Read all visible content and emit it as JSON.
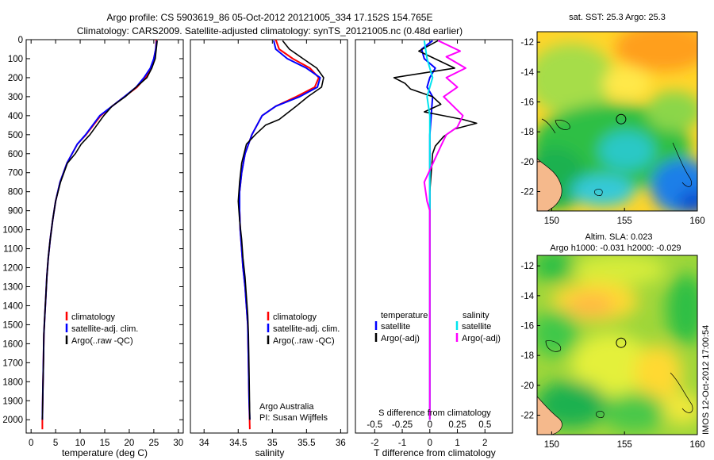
{
  "header": {
    "line1": "Argo profile: CS 5903619_86 05-Oct-2012 20121005_334 17.152S 154.765E",
    "line2": "Climatology: CARS2009. Satellite-adjusted climatology: synTS_20121005.nc (0.48d earlier)"
  },
  "colors": {
    "climatology": "#ff0000",
    "satellite": "#0000ff",
    "argo": "#000000",
    "salinity_sat": "#00e5ee",
    "salinity_argo": "#ff00ff",
    "land": "#f5b98c"
  },
  "chart_data": [
    {
      "type": "line",
      "id": "temperature",
      "xlabel": "temperature (deg C)",
      "ylabel": "",
      "xlim": [
        -1,
        31
      ],
      "ylim": [
        2070,
        0
      ],
      "xticks": [
        "0",
        "5",
        "10",
        "15",
        "20",
        "25",
        "30"
      ],
      "xtick_values": [
        0,
        5,
        10,
        15,
        20,
        25,
        30
      ],
      "yticks": [
        "0",
        "100",
        "200",
        "300",
        "400",
        "500",
        "600",
        "700",
        "800",
        "900",
        "1000",
        "1100",
        "1200",
        "1300",
        "1400",
        "1500",
        "1600",
        "1700",
        "1800",
        "1900",
        "2000"
      ],
      "ytick_values": [
        0,
        100,
        200,
        300,
        400,
        500,
        600,
        700,
        800,
        900,
        1000,
        1100,
        1200,
        1300,
        1400,
        1500,
        1600,
        1700,
        1800,
        1900,
        2000
      ],
      "legend": [
        "climatology",
        "satellite-adj. clim.",
        "Argo(..raw -QC)"
      ],
      "series": [
        {
          "name": "climatology",
          "color": "#ff0000",
          "x": [
            25.5,
            25.4,
            25.0,
            24.5,
            23.3,
            21.6,
            19.0,
            16.5,
            14.2,
            11.2,
            9.4,
            7.3,
            5.9,
            5.0,
            4.4,
            3.9,
            3.5,
            3.2,
            3.0,
            2.8,
            2.6,
            2.5,
            2.4,
            2.3,
            2.3
          ],
          "y": [
            0,
            50,
            100,
            150,
            200,
            250,
            300,
            350,
            400,
            500,
            550,
            650,
            750,
            850,
            950,
            1050,
            1150,
            1250,
            1350,
            1450,
            1550,
            1700,
            1850,
            2000,
            2050
          ]
        },
        {
          "name": "satellite-adj. clim.",
          "color": "#0000ff",
          "x": [
            25.6,
            25.4,
            25.0,
            24.3,
            23.0,
            21.4,
            19.0,
            16.5,
            14.0,
            11.1,
            9.4,
            7.3,
            5.9,
            5.0,
            4.4,
            3.9,
            3.5,
            3.2,
            3.0,
            2.8,
            2.6,
            2.5,
            2.4,
            2.3
          ],
          "y": [
            5,
            50,
            100,
            150,
            200,
            250,
            300,
            350,
            400,
            500,
            550,
            650,
            750,
            850,
            950,
            1050,
            1150,
            1250,
            1350,
            1450,
            1550,
            1700,
            1850,
            2000
          ]
        },
        {
          "name": "Argo(..raw -QC)",
          "color": "#000000",
          "x": [
            25.7,
            25.5,
            25.3,
            24.6,
            23.6,
            21.4,
            19.2,
            16.5,
            14.8,
            13.4,
            12.0,
            10.2,
            9.0,
            7.4,
            6.0,
            5.0,
            4.4,
            3.9,
            3.5,
            3.2,
            3.0,
            2.8,
            2.6,
            2.5,
            2.4,
            2.3
          ],
          "y": [
            5,
            50,
            100,
            150,
            200,
            250,
            300,
            350,
            400,
            450,
            500,
            550,
            600,
            650,
            750,
            850,
            950,
            1050,
            1150,
            1250,
            1350,
            1450,
            1550,
            1700,
            1850,
            2000
          ]
        }
      ]
    },
    {
      "type": "line",
      "id": "salinity",
      "xlabel": "salinity",
      "xlim": [
        33.8,
        36.1
      ],
      "ylim": [
        2070,
        0
      ],
      "xticks": [
        "34",
        "34.5",
        "35",
        "35.5",
        "36"
      ],
      "xtick_values": [
        34,
        34.5,
        35,
        35.5,
        36
      ],
      "legend": [
        "climatology",
        "satellite-adj. clim.",
        "Argo(..raw -QC)"
      ],
      "annotation": [
        "Argo Australia",
        "PI: Susan Wijffels"
      ],
      "series": [
        {
          "name": "climatology",
          "color": "#ff0000",
          "x": [
            35.05,
            35.1,
            35.3,
            35.55,
            35.68,
            35.62,
            35.35,
            35.05,
            34.85,
            34.7,
            34.6,
            34.55,
            34.52,
            34.52,
            34.53,
            34.55,
            34.57,
            34.6,
            34.62,
            34.64,
            34.65,
            34.66,
            34.67
          ],
          "y": [
            0,
            50,
            100,
            150,
            200,
            250,
            300,
            350,
            400,
            500,
            600,
            700,
            800,
            900,
            1000,
            1100,
            1200,
            1300,
            1400,
            1500,
            1700,
            1900,
            2050
          ]
        },
        {
          "name": "satellite-adj. clim.",
          "color": "#0000ff",
          "x": [
            35.02,
            35.05,
            35.22,
            35.5,
            35.7,
            35.66,
            35.4,
            35.05,
            34.85,
            34.7,
            34.6,
            34.55,
            34.52,
            34.52,
            34.53,
            34.55,
            34.57,
            34.6,
            34.62,
            34.64,
            34.65,
            34.66,
            34.67
          ],
          "y": [
            5,
            50,
            100,
            150,
            200,
            250,
            300,
            350,
            400,
            500,
            600,
            700,
            800,
            900,
            1000,
            1100,
            1200,
            1300,
            1400,
            1500,
            1700,
            1900,
            2000
          ]
        },
        {
          "name": "Argo(..raw -QC)",
          "color": "#000000",
          "x": [
            35.15,
            35.25,
            35.45,
            35.65,
            35.75,
            35.72,
            35.52,
            35.35,
            35.1,
            34.9,
            34.75,
            34.62,
            34.55,
            34.52,
            34.5,
            34.52,
            34.55,
            34.57,
            34.6,
            34.62,
            34.64,
            34.65,
            34.66,
            34.67
          ],
          "y": [
            5,
            50,
            100,
            150,
            200,
            250,
            300,
            350,
            420,
            450,
            500,
            550,
            650,
            750,
            850,
            950,
            1050,
            1150,
            1250,
            1350,
            1450,
            1550,
            1750,
            2000
          ]
        }
      ]
    },
    {
      "type": "line",
      "id": "differences",
      "xlabel": "T difference from climatology",
      "xlabel_top": "S difference from climatology",
      "xlim": [
        -2.7,
        3.0
      ],
      "ylim": [
        2070,
        0
      ],
      "xticks": [
        "-2",
        "-1",
        "0",
        "1",
        "2"
      ],
      "xtick_values": [
        -2,
        -1,
        0,
        1,
        2
      ],
      "xticks_top": [
        "-0.5",
        "-0.25",
        "0",
        "0.25",
        "0.5"
      ],
      "xtick_top_values": [
        -0.5,
        -0.25,
        0,
        0.25,
        0.5
      ],
      "legend_temperature": [
        "temperature",
        "satellite",
        "Argo(-adj)"
      ],
      "legend_salinity": [
        "salinity",
        "satellite",
        "Argo(-adj)"
      ],
      "series": [
        {
          "name": "temperature satellite",
          "color": "#0000ff",
          "x": [
            0.1,
            -0.3,
            -0.2,
            0.2,
            0.0,
            -0.1,
            0.1,
            0.05,
            0.0,
            0.0,
            0.0,
            0.0
          ],
          "y": [
            5,
            50,
            100,
            150,
            200,
            250,
            300,
            400,
            500,
            700,
            1000,
            2000
          ]
        },
        {
          "name": "temperature Argo(-adj)",
          "color": "#000000",
          "x": [
            0.3,
            -0.4,
            0.9,
            -1.3,
            -0.9,
            -0.7,
            0.1,
            0.4,
            -0.2,
            1.2,
            1.7,
            0.9,
            0.5,
            0.2,
            0.1,
            0.0,
            0.0,
            0.0
          ],
          "y": [
            5,
            60,
            150,
            200,
            230,
            260,
            300,
            340,
            380,
            420,
            440,
            470,
            510,
            560,
            600,
            800,
            1200,
            2000
          ]
        },
        {
          "name": "salinity satellite",
          "color": "#00e5ee",
          "x": [
            -0.2,
            -0.1,
            0.1,
            -0.1,
            0.0,
            0.0,
            0.0
          ],
          "y": [
            5,
            100,
            200,
            300,
            400,
            1000,
            2000
          ]
        },
        {
          "name": "salinity Argo(-adj)",
          "color": "#ff00ff",
          "x": [
            0.3,
            1.1,
            0.6,
            1.3,
            0.6,
            1.0,
            0.5,
            1.2,
            1.0,
            0.6,
            0.4,
            -0.2,
            -0.1,
            0.0,
            0.0,
            0.0
          ],
          "y": [
            5,
            60,
            90,
            150,
            200,
            250,
            300,
            400,
            460,
            500,
            560,
            750,
            850,
            900,
            1200,
            2000
          ]
        }
      ]
    },
    {
      "type": "heatmap",
      "id": "sst_map",
      "title": "sat. SST: 25.3  Argo: 25.3",
      "xticks": [
        "150",
        "155",
        "160"
      ],
      "yticks": [
        "-12",
        "-14",
        "-16",
        "-18",
        "-20",
        "-22"
      ],
      "xlim": [
        149,
        160
      ],
      "ylim": [
        -23.3,
        -11.3
      ],
      "argo_position": {
        "lon": 154.765,
        "lat": -17.152
      }
    },
    {
      "type": "heatmap",
      "id": "sla_map",
      "title": "Altim. SLA: 0.023",
      "subtitle": "Argo h1000: -0.031 h2000: -0.029",
      "xticks": [
        "150",
        "155",
        "160"
      ],
      "yticks": [
        "-12",
        "-14",
        "-16",
        "-18",
        "-20",
        "-22"
      ],
      "xlim": [
        149,
        160
      ],
      "ylim": [
        -23.3,
        -11.3
      ],
      "argo_position": {
        "lon": 154.765,
        "lat": -17.152
      }
    }
  ],
  "footer": {
    "stamp": "IMOS 12-Oct-2012 17:00:54"
  }
}
